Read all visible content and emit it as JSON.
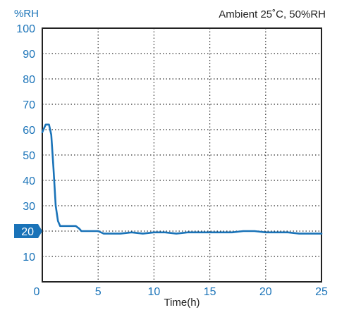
{
  "chart_data": {
    "type": "line",
    "ylabel": "%RH",
    "xlabel": "Time(h)",
    "annotation": "Ambient 25˚C, 50%RH",
    "xlim": [
      0,
      25
    ],
    "ylim": [
      0,
      100
    ],
    "xticks": [
      "0",
      "5",
      "10",
      "15",
      "20",
      "25"
    ],
    "yticks": [
      "10",
      "20",
      "30",
      "40",
      "50",
      "60",
      "70",
      "80",
      "90",
      "100"
    ],
    "highlight_tick": "20",
    "grid": true,
    "series": [
      {
        "color": "#1a73b8",
        "x": [
          0,
          0.3,
          0.6,
          0.8,
          1.0,
          1.2,
          1.4,
          1.6,
          2.0,
          3.0,
          3.3,
          3.5,
          4.0,
          5.0,
          5.5,
          7.0,
          8.0,
          9.0,
          10.0,
          11.0,
          12.0,
          13.0,
          14.0,
          15.0,
          16.0,
          17.0,
          18.0,
          19.0,
          20.0,
          21.0,
          22.0,
          23.0,
          24.0,
          25.0
        ],
        "y": [
          59,
          62,
          62,
          58,
          45,
          30,
          24,
          22,
          22,
          22,
          21,
          20,
          20,
          20,
          19,
          19,
          19.5,
          19,
          19.5,
          19.5,
          19,
          19.5,
          19.5,
          19.5,
          19.5,
          19.5,
          20,
          20,
          19.5,
          19.5,
          19.5,
          19,
          19,
          19
        ]
      }
    ]
  },
  "colors": {
    "axis_text": "#1a73b8",
    "frame": "#222222",
    "highlight_bg": "#1a73b8",
    "highlight_text": "#ffffff"
  }
}
